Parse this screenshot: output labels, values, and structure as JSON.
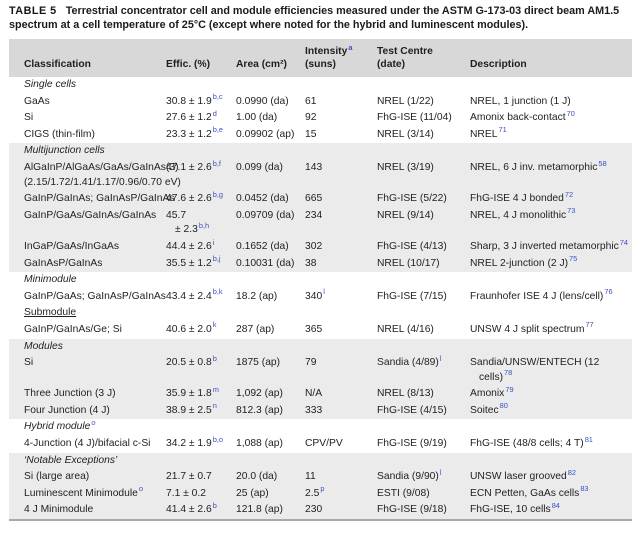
{
  "colors": {
    "header_band": "#d8d8d8",
    "section_shade": "#ebebeb",
    "citation_blue": "#3b4fc4",
    "text": "#1f1f1f"
  },
  "caption": {
    "label": "TABLE 5",
    "text": "Terrestrial concentrator cell and module efficiencies measured under the ASTM G-173-03 direct beam AM1.5 spectrum at a cell temperature of 25°C (except where noted for the hybrid and luminescent modules)."
  },
  "table": {
    "columns": [
      {
        "lines": [
          {
            "t": "Classification"
          }
        ]
      },
      {
        "lines": [
          {
            "t": "Effic. (%)"
          }
        ]
      },
      {
        "lines": [
          {
            "t": "Area (cm²)"
          }
        ]
      },
      {
        "lines": [
          {
            "t": "Intensity",
            "sup": "a"
          },
          {
            "t": "(suns)"
          }
        ]
      },
      {
        "lines": [
          {
            "t": "Test Centre"
          },
          {
            "t": "(date)"
          }
        ]
      },
      {
        "lines": [
          {
            "t": "Description"
          }
        ]
      }
    ],
    "sections": [
      {
        "title": {
          "text": "Single cells",
          "style": "italic"
        },
        "shaded": false,
        "rows": [
          {
            "cells": [
              [
                {
                  "t": "GaAs"
                }
              ],
              [
                {
                  "t": "30.8 ± 1.9",
                  "sup": "b,c"
                }
              ],
              [
                {
                  "t": "0.0990 (da)"
                }
              ],
              [
                {
                  "t": "61"
                }
              ],
              [
                {
                  "t": "NREL (1/22)"
                }
              ],
              [
                {
                  "t": "NREL, 1 junction (1 J)"
                }
              ]
            ]
          },
          {
            "cells": [
              [
                {
                  "t": "Si"
                }
              ],
              [
                {
                  "t": "27.6 ± 1.2",
                  "sup": "d"
                }
              ],
              [
                {
                  "t": "1.00 (da)"
                }
              ],
              [
                {
                  "t": "92"
                }
              ],
              [
                {
                  "t": "FhG-ISE (11/04)"
                }
              ],
              [
                {
                  "t": "Amonix back-contact",
                  "sup": "70"
                }
              ]
            ]
          },
          {
            "cells": [
              [
                {
                  "t": "CIGS (thin-film)"
                }
              ],
              [
                {
                  "t": "23.3 ± 1.2",
                  "sup": "b,e"
                }
              ],
              [
                {
                  "t": "0.09902 (ap)"
                }
              ],
              [
                {
                  "t": "15"
                }
              ],
              [
                {
                  "t": "NREL (3/14)"
                }
              ],
              [
                {
                  "t": "NREL",
                  "sup": "71"
                }
              ]
            ]
          }
        ]
      },
      {
        "title": {
          "text": "Multijunction cells",
          "style": "italic"
        },
        "shaded": true,
        "rows": [
          {
            "cells": [
              [
                {
                  "t": "AlGaInP/AlGaAs/GaAs/GaInAs(3)"
                },
                {
                  "t": "(2.15/1.72/1.41/1.17/0.96/0.70 eV)"
                }
              ],
              [
                {
                  "t": "47.1 ± 2.6",
                  "sup": "b,f"
                }
              ],
              [
                {
                  "t": "0.099 (da)"
                }
              ],
              [
                {
                  "t": "143"
                }
              ],
              [
                {
                  "t": "NREL (3/19)"
                }
              ],
              [
                {
                  "t": "NREL, 6 J inv. metamorphic",
                  "sup": "58"
                }
              ]
            ]
          },
          {
            "cells": [
              [
                {
                  "t": "GaInP/GaInAs; GaInAsP/GaInAs"
                }
              ],
              [
                {
                  "t": "47.6 ± 2.6",
                  "sup": "b,g"
                }
              ],
              [
                {
                  "t": "0.0452 (da)"
                }
              ],
              [
                {
                  "t": "665"
                }
              ],
              [
                {
                  "t": "FhG-ISE (5/22)"
                }
              ],
              [
                {
                  "t": "FhG-ISE 4 J bonded",
                  "sup": "72"
                }
              ]
            ]
          },
          {
            "cells": [
              [
                {
                  "t": "GaInP/GaAs/GaInAs/GaInAs"
                }
              ],
              [
                {
                  "t": "45.7"
                },
                {
                  "t": "± 2.3",
                  "sup": "b,h",
                  "ind": true
                }
              ],
              [
                {
                  "t": "0.09709 (da)"
                }
              ],
              [
                {
                  "t": "234"
                }
              ],
              [
                {
                  "t": "NREL (9/14)"
                }
              ],
              [
                {
                  "t": "NREL, 4 J monolithic",
                  "sup": "73"
                }
              ]
            ]
          },
          {
            "cells": [
              [
                {
                  "t": "InGaP/GaAs/InGaAs"
                }
              ],
              [
                {
                  "t": "44.4 ± 2.6",
                  "sup": "i"
                }
              ],
              [
                {
                  "t": "0.1652 (da)"
                }
              ],
              [
                {
                  "t": "302"
                }
              ],
              [
                {
                  "t": "FhG-ISE (4/13)"
                }
              ],
              [
                {
                  "t": "Sharp, 3 J inverted metamorphic",
                  "sup": "74"
                }
              ]
            ]
          },
          {
            "cells": [
              [
                {
                  "t": "GaInAsP/GaInAs"
                }
              ],
              [
                {
                  "t": "35.5 ± 1.2",
                  "sup": "b,j"
                }
              ],
              [
                {
                  "t": "0.10031 (da)"
                }
              ],
              [
                {
                  "t": "38"
                }
              ],
              [
                {
                  "t": "NREL (10/17)"
                }
              ],
              [
                {
                  "t": "NREL 2-junction (2 J)",
                  "sup": "75"
                }
              ]
            ]
          }
        ]
      },
      {
        "title": {
          "text": "Minimodule",
          "style": "italic"
        },
        "shaded": false,
        "rows": [
          {
            "cells": [
              [
                {
                  "t": "GaInP/GaAs; GaInAsP/GaInAs"
                }
              ],
              [
                {
                  "t": "43.4 ± 2.4",
                  "sup": "b,k"
                }
              ],
              [
                {
                  "t": "18.2 (ap)"
                }
              ],
              [
                {
                  "t": "340",
                  "sup": "l"
                }
              ],
              [
                {
                  "t": "FhG-ISE (7/15)"
                }
              ],
              [
                {
                  "t": "Fraunhofer ISE 4 J (lens/cell)",
                  "sup": "76"
                }
              ]
            ]
          }
        ]
      },
      {
        "title": {
          "text": "Submodule",
          "style": "underline"
        },
        "shaded": false,
        "rows": [
          {
            "cells": [
              [
                {
                  "t": "GaInP/GaInAs/Ge; Si"
                }
              ],
              [
                {
                  "t": "40.6 ± 2.0",
                  "sup": "k"
                }
              ],
              [
                {
                  "t": "287 (ap)"
                }
              ],
              [
                {
                  "t": "365"
                }
              ],
              [
                {
                  "t": "NREL (4/16)"
                }
              ],
              [
                {
                  "t": "UNSW 4 J split spectrum",
                  "sup": "77"
                }
              ]
            ]
          }
        ]
      },
      {
        "title": {
          "text": "Modules",
          "style": "italic"
        },
        "shaded": true,
        "rows": [
          {
            "cells": [
              [
                {
                  "t": "Si"
                }
              ],
              [
                {
                  "t": "20.5 ± 0.8",
                  "sup": "b"
                }
              ],
              [
                {
                  "t": "1875 (ap)"
                }
              ],
              [
                {
                  "t": "79"
                }
              ],
              [
                {
                  "t": "Sandia (4/89)",
                  "sup": "l"
                }
              ],
              [
                {
                  "t": "Sandia/UNSW/ENTECH (12"
                },
                {
                  "t": "cells)",
                  "sup": "78",
                  "ind": true
                }
              ]
            ]
          },
          {
            "cells": [
              [
                {
                  "t": "Three Junction (3 J)"
                }
              ],
              [
                {
                  "t": "35.9 ± 1.8",
                  "sup": "m"
                }
              ],
              [
                {
                  "t": "1,092 (ap)"
                }
              ],
              [
                {
                  "t": "N/A"
                }
              ],
              [
                {
                  "t": "NREL (8/13)"
                }
              ],
              [
                {
                  "t": "Amonix",
                  "sup": "79"
                }
              ]
            ]
          },
          {
            "cells": [
              [
                {
                  "t": "Four Junction (4 J)"
                }
              ],
              [
                {
                  "t": "38.9 ± 2.5",
                  "sup": "n"
                }
              ],
              [
                {
                  "t": "812.3 (ap)"
                }
              ],
              [
                {
                  "t": "333"
                }
              ],
              [
                {
                  "t": "FhG-ISE (4/15)"
                }
              ],
              [
                {
                  "t": "Soitec",
                  "sup": "80"
                }
              ]
            ]
          }
        ]
      },
      {
        "title": {
          "text": "Hybrid module",
          "sup": "o",
          "style": "italic"
        },
        "shaded": false,
        "rows": [
          {
            "cells": [
              [
                {
                  "t": "4-Junction (4 J)/bifacial c-Si"
                }
              ],
              [
                {
                  "t": "34.2 ± 1.9",
                  "sup": "b,o"
                }
              ],
              [
                {
                  "t": "1,088 (ap)"
                }
              ],
              [
                {
                  "t": "CPV/PV"
                }
              ],
              [
                {
                  "t": "FhG-ISE (9/19)"
                }
              ],
              [
                {
                  "t": "FhG-ISE (48/8 cells; 4 T)",
                  "sup": "81"
                }
              ]
            ]
          }
        ]
      },
      {
        "title": {
          "text": "‘Notable Exceptions’",
          "style": "italic"
        },
        "shaded": true,
        "rows": [
          {
            "cells": [
              [
                {
                  "t": "Si (large area)"
                }
              ],
              [
                {
                  "t": "21.7 ± 0.7"
                }
              ],
              [
                {
                  "t": "20.0 (da)"
                }
              ],
              [
                {
                  "t": "11"
                }
              ],
              [
                {
                  "t": "Sandia (9/90)",
                  "sup": "l"
                }
              ],
              [
                {
                  "t": "UNSW laser grooved",
                  "sup": "82"
                }
              ]
            ]
          },
          {
            "cells": [
              [
                {
                  "t": "Luminescent Minimodule",
                  "sup": "o"
                }
              ],
              [
                {
                  "t": "7.1 ± 0.2"
                }
              ],
              [
                {
                  "t": "25 (ap)"
                }
              ],
              [
                {
                  "t": "2.5",
                  "sup": "p"
                }
              ],
              [
                {
                  "t": "ESTI (9/08)"
                }
              ],
              [
                {
                  "t": "ECN Petten, GaAs cells",
                  "sup": "83"
                }
              ]
            ]
          },
          {
            "cells": [
              [
                {
                  "t": "4 J Minimodule"
                }
              ],
              [
                {
                  "t": "41.4 ± 2.6",
                  "sup": "b"
                }
              ],
              [
                {
                  "t": "121.8 (ap)"
                }
              ],
              [
                {
                  "t": "230"
                }
              ],
              [
                {
                  "t": "FhG-ISE (9/18)"
                }
              ],
              [
                {
                  "t": "FhG-ISE, 10 cells",
                  "sup": "84"
                }
              ]
            ]
          }
        ]
      }
    ]
  }
}
